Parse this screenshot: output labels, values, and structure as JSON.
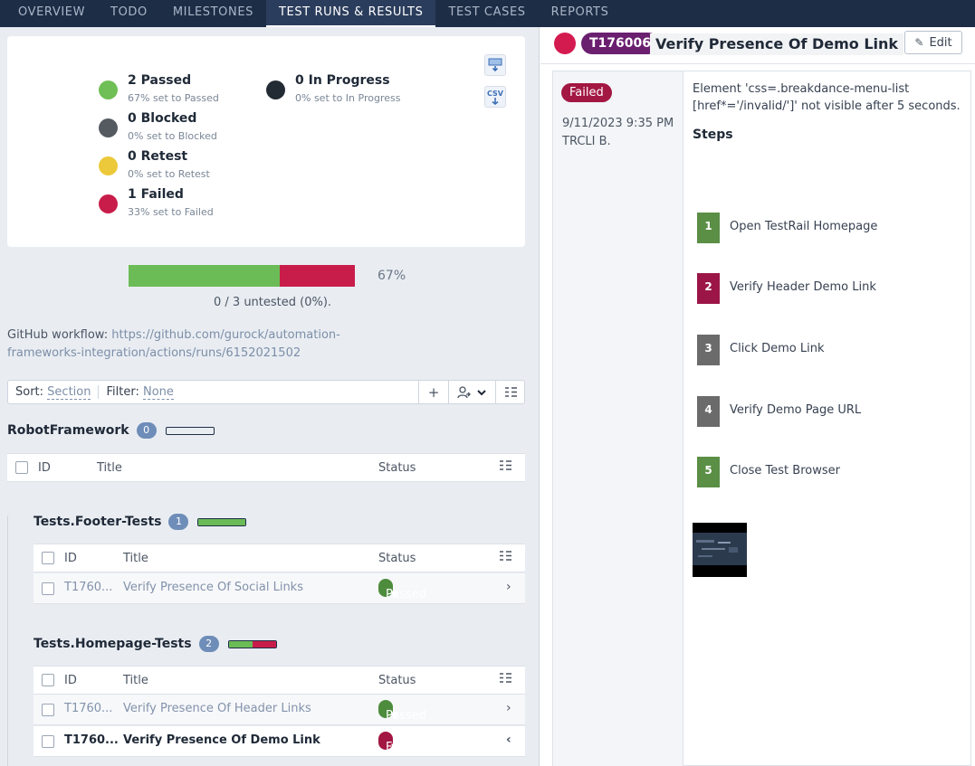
{
  "nav": {
    "tabs": [
      {
        "label": "OVERVIEW"
      },
      {
        "label": "TODO"
      },
      {
        "label": "MILESTONES"
      },
      {
        "label": "TEST RUNS & RESULTS"
      },
      {
        "label": "TEST CASES"
      },
      {
        "label": "REPORTS"
      }
    ]
  },
  "summary": {
    "stats": [
      {
        "label": "2 Passed",
        "sub": "67% set to Passed",
        "color": "#70bf56"
      },
      {
        "label": "0 Blocked",
        "sub": "0% set to Blocked",
        "color": "#555a60"
      },
      {
        "label": "0 Retest",
        "sub": "0% set to Retest",
        "color": "#ecc93a"
      },
      {
        "label": "1 Failed",
        "sub": "33% set to Failed",
        "color": "#c81d4b"
      },
      {
        "label": "0 In Progress",
        "sub": "0% set to In Progress",
        "color": "#222a33"
      }
    ],
    "csv_label": "CSV",
    "progress_passed": 0.6667,
    "progress_failed": 0.3333,
    "percent": "67%",
    "untested": "0 / 3 untested (0%)."
  },
  "github": {
    "prefix": "GitHub workflow:",
    "link": "https://github.com/gurock/automation-frameworks-integration/actions/runs/6152021502"
  },
  "filter": {
    "sort_label": "Sort:",
    "sort_value": "Section",
    "filter_label": "Filter:",
    "filter_value": "None"
  },
  "groups": {
    "root": {
      "name": "RobotFramework",
      "count": "0"
    },
    "footer": {
      "name": "Tests.Footer-Tests",
      "count": "1",
      "passed_fraction": 1.0
    },
    "homepage": {
      "name": "Tests.Homepage-Tests",
      "count": "2",
      "passed_fraction": 0.5
    }
  },
  "table_headers": {
    "id": "ID",
    "title": "Title",
    "status": "Status"
  },
  "rows": {
    "footer_1": {
      "id": "T1760...",
      "title": "Verify Presence Of Social Links",
      "status": "Passed"
    },
    "home_1": {
      "id": "T1760...",
      "title": "Verify Presence Of Header Links",
      "status": "Passed"
    },
    "home_2": {
      "id": "T1760...",
      "title": "Verify Presence Of Demo Link",
      "status": "Failed"
    }
  },
  "detail": {
    "test_id": "T176006",
    "title": "Verify Presence Of Demo Link",
    "edit_label": "Edit",
    "result": {
      "status": "Failed",
      "date": "9/11/2023 9:35 PM",
      "user": "TRCLI B.",
      "message": "Element 'css=.breakdance-menu-list [href*='/invalid/']' not visible after 5 seconds.",
      "steps_heading": "Steps",
      "steps": [
        {
          "num": "1",
          "text": "Open TestRail Homepage",
          "color": "#5a8f45"
        },
        {
          "num": "2",
          "text": "Verify Header Demo Link",
          "color": "#9b1646"
        },
        {
          "num": "3",
          "text": "Click Demo Link",
          "color": "#6b6b6b"
        },
        {
          "num": "4",
          "text": "Verify Demo Page URL",
          "color": "#6b6b6b"
        },
        {
          "num": "5",
          "text": "Close Test Browser",
          "color": "#5a8f45"
        }
      ]
    }
  }
}
